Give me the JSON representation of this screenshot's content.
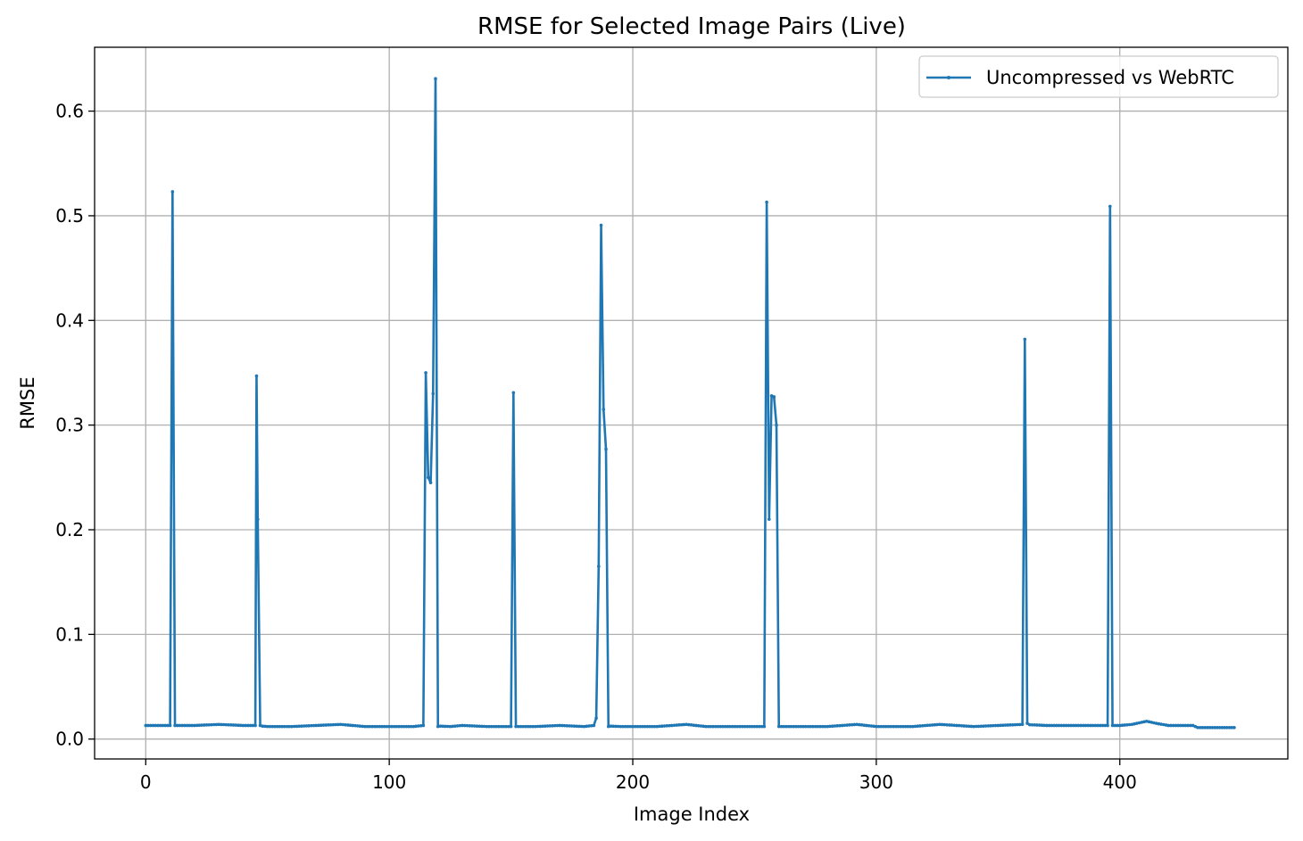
{
  "chart_data": {
    "type": "line",
    "title": "RMSE for Selected Image Pairs (Live)",
    "xlabel": "Image Index",
    "ylabel": "RMSE",
    "xlim": [
      -21,
      469
    ],
    "ylim": [
      -0.019,
      0.661
    ],
    "xticks": [
      0,
      100,
      200,
      300,
      400
    ],
    "yticks": [
      0.0,
      0.1,
      0.2,
      0.3,
      0.4,
      0.5,
      0.6
    ],
    "grid": true,
    "legend_position": "top-right",
    "line_color": "#1f77b4",
    "series": [
      {
        "name": "Uncompressed vs WebRTC",
        "baseline": [
          [
            0,
            0.013
          ],
          [
            10,
            0.013
          ],
          [
            20,
            0.013
          ],
          [
            30,
            0.014
          ],
          [
            40,
            0.013
          ],
          [
            44,
            0.013
          ],
          [
            50,
            0.012
          ],
          [
            60,
            0.012
          ],
          [
            70,
            0.013
          ],
          [
            80,
            0.014
          ],
          [
            90,
            0.012
          ],
          [
            100,
            0.012
          ],
          [
            110,
            0.012
          ],
          [
            114,
            0.013
          ],
          [
            125,
            0.012
          ],
          [
            130,
            0.013
          ],
          [
            140,
            0.012
          ],
          [
            150,
            0.012
          ],
          [
            160,
            0.012
          ],
          [
            170,
            0.013
          ],
          [
            180,
            0.012
          ],
          [
            184,
            0.013
          ],
          [
            195,
            0.012
          ],
          [
            210,
            0.012
          ],
          [
            222,
            0.014
          ],
          [
            230,
            0.012
          ],
          [
            240,
            0.012
          ],
          [
            254,
            0.012
          ],
          [
            265,
            0.012
          ],
          [
            280,
            0.012
          ],
          [
            292,
            0.014
          ],
          [
            300,
            0.012
          ],
          [
            315,
            0.012
          ],
          [
            326,
            0.014
          ],
          [
            340,
            0.012
          ],
          [
            350,
            0.013
          ],
          [
            360,
            0.014
          ],
          [
            370,
            0.013
          ],
          [
            380,
            0.013
          ],
          [
            394,
            0.013
          ],
          [
            400,
            0.013
          ],
          [
            405,
            0.014
          ],
          [
            411,
            0.017
          ],
          [
            415,
            0.015
          ],
          [
            420,
            0.013
          ],
          [
            430,
            0.013
          ],
          [
            432,
            0.011
          ],
          [
            440,
            0.011
          ],
          [
            447,
            0.011
          ]
        ],
        "spikes": [
          [
            [
              10,
              0.013
            ],
            [
              11,
              0.523
            ],
            [
              12,
              0.013
            ]
          ],
          [
            [
              45,
              0.013
            ],
            [
              45.5,
              0.347
            ],
            [
              46,
              0.21
            ],
            [
              47,
              0.013
            ]
          ],
          [
            [
              114,
              0.013
            ],
            [
              115,
              0.35
            ],
            [
              116,
              0.25
            ],
            [
              117,
              0.245
            ],
            [
              118,
              0.33
            ],
            [
              119,
              0.631
            ],
            [
              120,
              0.012
            ]
          ],
          [
            [
              150,
              0.012
            ],
            [
              151,
              0.331
            ],
            [
              152,
              0.012
            ]
          ],
          [
            [
              185,
              0.02
            ],
            [
              186,
              0.165
            ],
            [
              187,
              0.491
            ],
            [
              188,
              0.315
            ],
            [
              189,
              0.277
            ],
            [
              190,
              0.012
            ]
          ],
          [
            [
              254,
              0.012
            ],
            [
              255,
              0.513
            ],
            [
              256,
              0.21
            ],
            [
              257,
              0.328
            ],
            [
              258,
              0.327
            ],
            [
              259,
              0.3
            ],
            [
              260,
              0.012
            ]
          ],
          [
            [
              360,
              0.014
            ],
            [
              361,
              0.382
            ],
            [
              362,
              0.015
            ]
          ],
          [
            [
              395,
              0.013
            ],
            [
              396,
              0.509
            ],
            [
              397,
              0.013
            ]
          ]
        ]
      }
    ]
  }
}
